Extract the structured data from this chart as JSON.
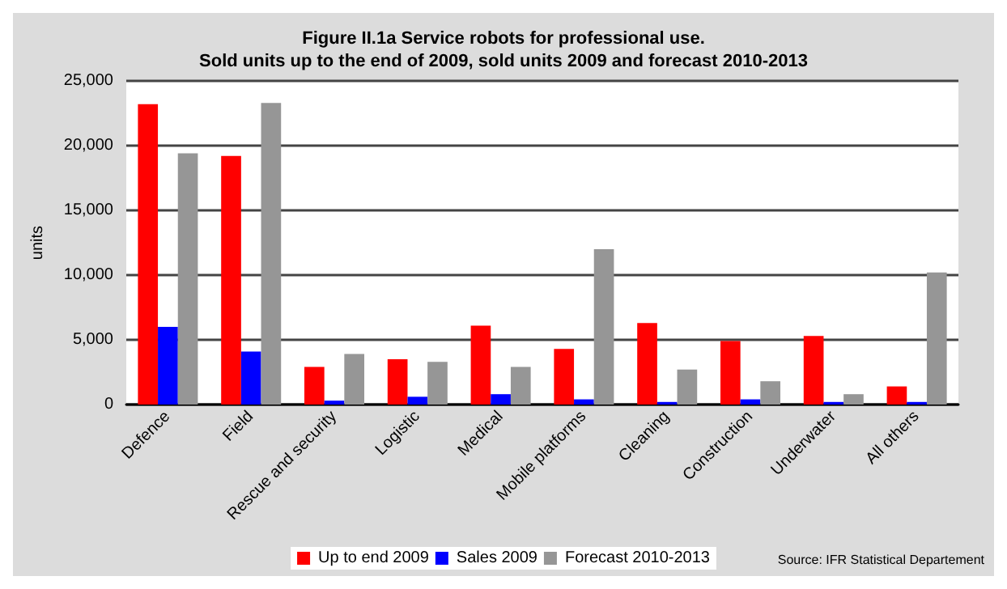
{
  "chart_data": {
    "type": "bar",
    "title": "Figure II.1a Service robots for professional use.\nSold units up to the end of 2009, sold units 2009 and forecast 2010-2013",
    "ylabel": "units",
    "categories": [
      "Defence",
      "Field",
      "Rescue and security",
      "Logistic",
      "Medical",
      "Mobile platforms",
      "Cleaning",
      "Construction",
      "Underwater",
      "All others"
    ],
    "series": [
      {
        "name": "Up to end 2009",
        "color": "#ff0000",
        "values": [
          23200,
          19200,
          2900,
          3500,
          6100,
          4300,
          6300,
          4900,
          5300,
          1400
        ]
      },
      {
        "name": "Sales 2009",
        "color": "#0000ff",
        "values": [
          6000,
          4100,
          300,
          600,
          800,
          400,
          200,
          400,
          200,
          200
        ]
      },
      {
        "name": "Forecast 2010-2013",
        "color": "#969696",
        "values": [
          19400,
          23300,
          3900,
          3300,
          2900,
          12000,
          2700,
          1800,
          800,
          10200
        ]
      }
    ],
    "ylim": [
      0,
      25000
    ],
    "yticks": [
      0,
      {
        "value": 5000,
        "label": "5,000"
      },
      {
        "value": 10000,
        "label": "10,000"
      },
      {
        "value": 15000,
        "label": "15,000"
      },
      {
        "value": 20000,
        "label": "20,000"
      },
      {
        "value": 25000,
        "label": "25,000"
      }
    ],
    "grid": "y",
    "legend": "bottom",
    "annotations": [
      "Source: IFR Statistical Departement"
    ]
  }
}
